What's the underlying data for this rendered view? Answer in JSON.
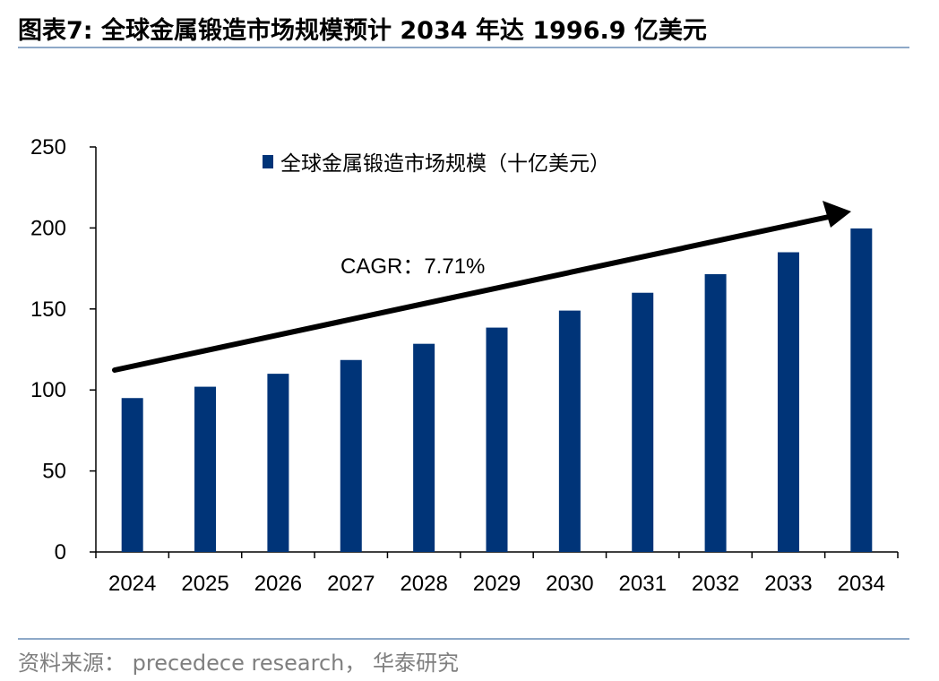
{
  "header": {
    "title": "图表7:   全球金属锻造市场规模预计 2034 年达 1996.9 亿美元"
  },
  "footer": {
    "source": "资料来源： precedece research， 华泰研究"
  },
  "colors": {
    "bar": "#003478",
    "rule": "#8ea9c8",
    "source_text": "#7f7f7f"
  },
  "chart_data": {
    "type": "bar",
    "title": "",
    "xlabel": "",
    "ylabel": "",
    "categories": [
      "2024",
      "2025",
      "2026",
      "2027",
      "2028",
      "2029",
      "2030",
      "2031",
      "2032",
      "2033",
      "2034"
    ],
    "series": [
      {
        "name": "全球金属锻造市场规模（十亿美元）",
        "values": [
          95,
          102,
          110,
          118.5,
          128.5,
          138.5,
          149,
          160,
          171.5,
          185,
          199.7
        ]
      }
    ],
    "ylim": [
      0,
      250
    ],
    "yticks": [
      0,
      50,
      100,
      150,
      200,
      250
    ],
    "grid": false,
    "legend_position": "top",
    "annotations": [
      {
        "text": "CAGR：7.71%",
        "type": "trend-arrow"
      }
    ]
  }
}
